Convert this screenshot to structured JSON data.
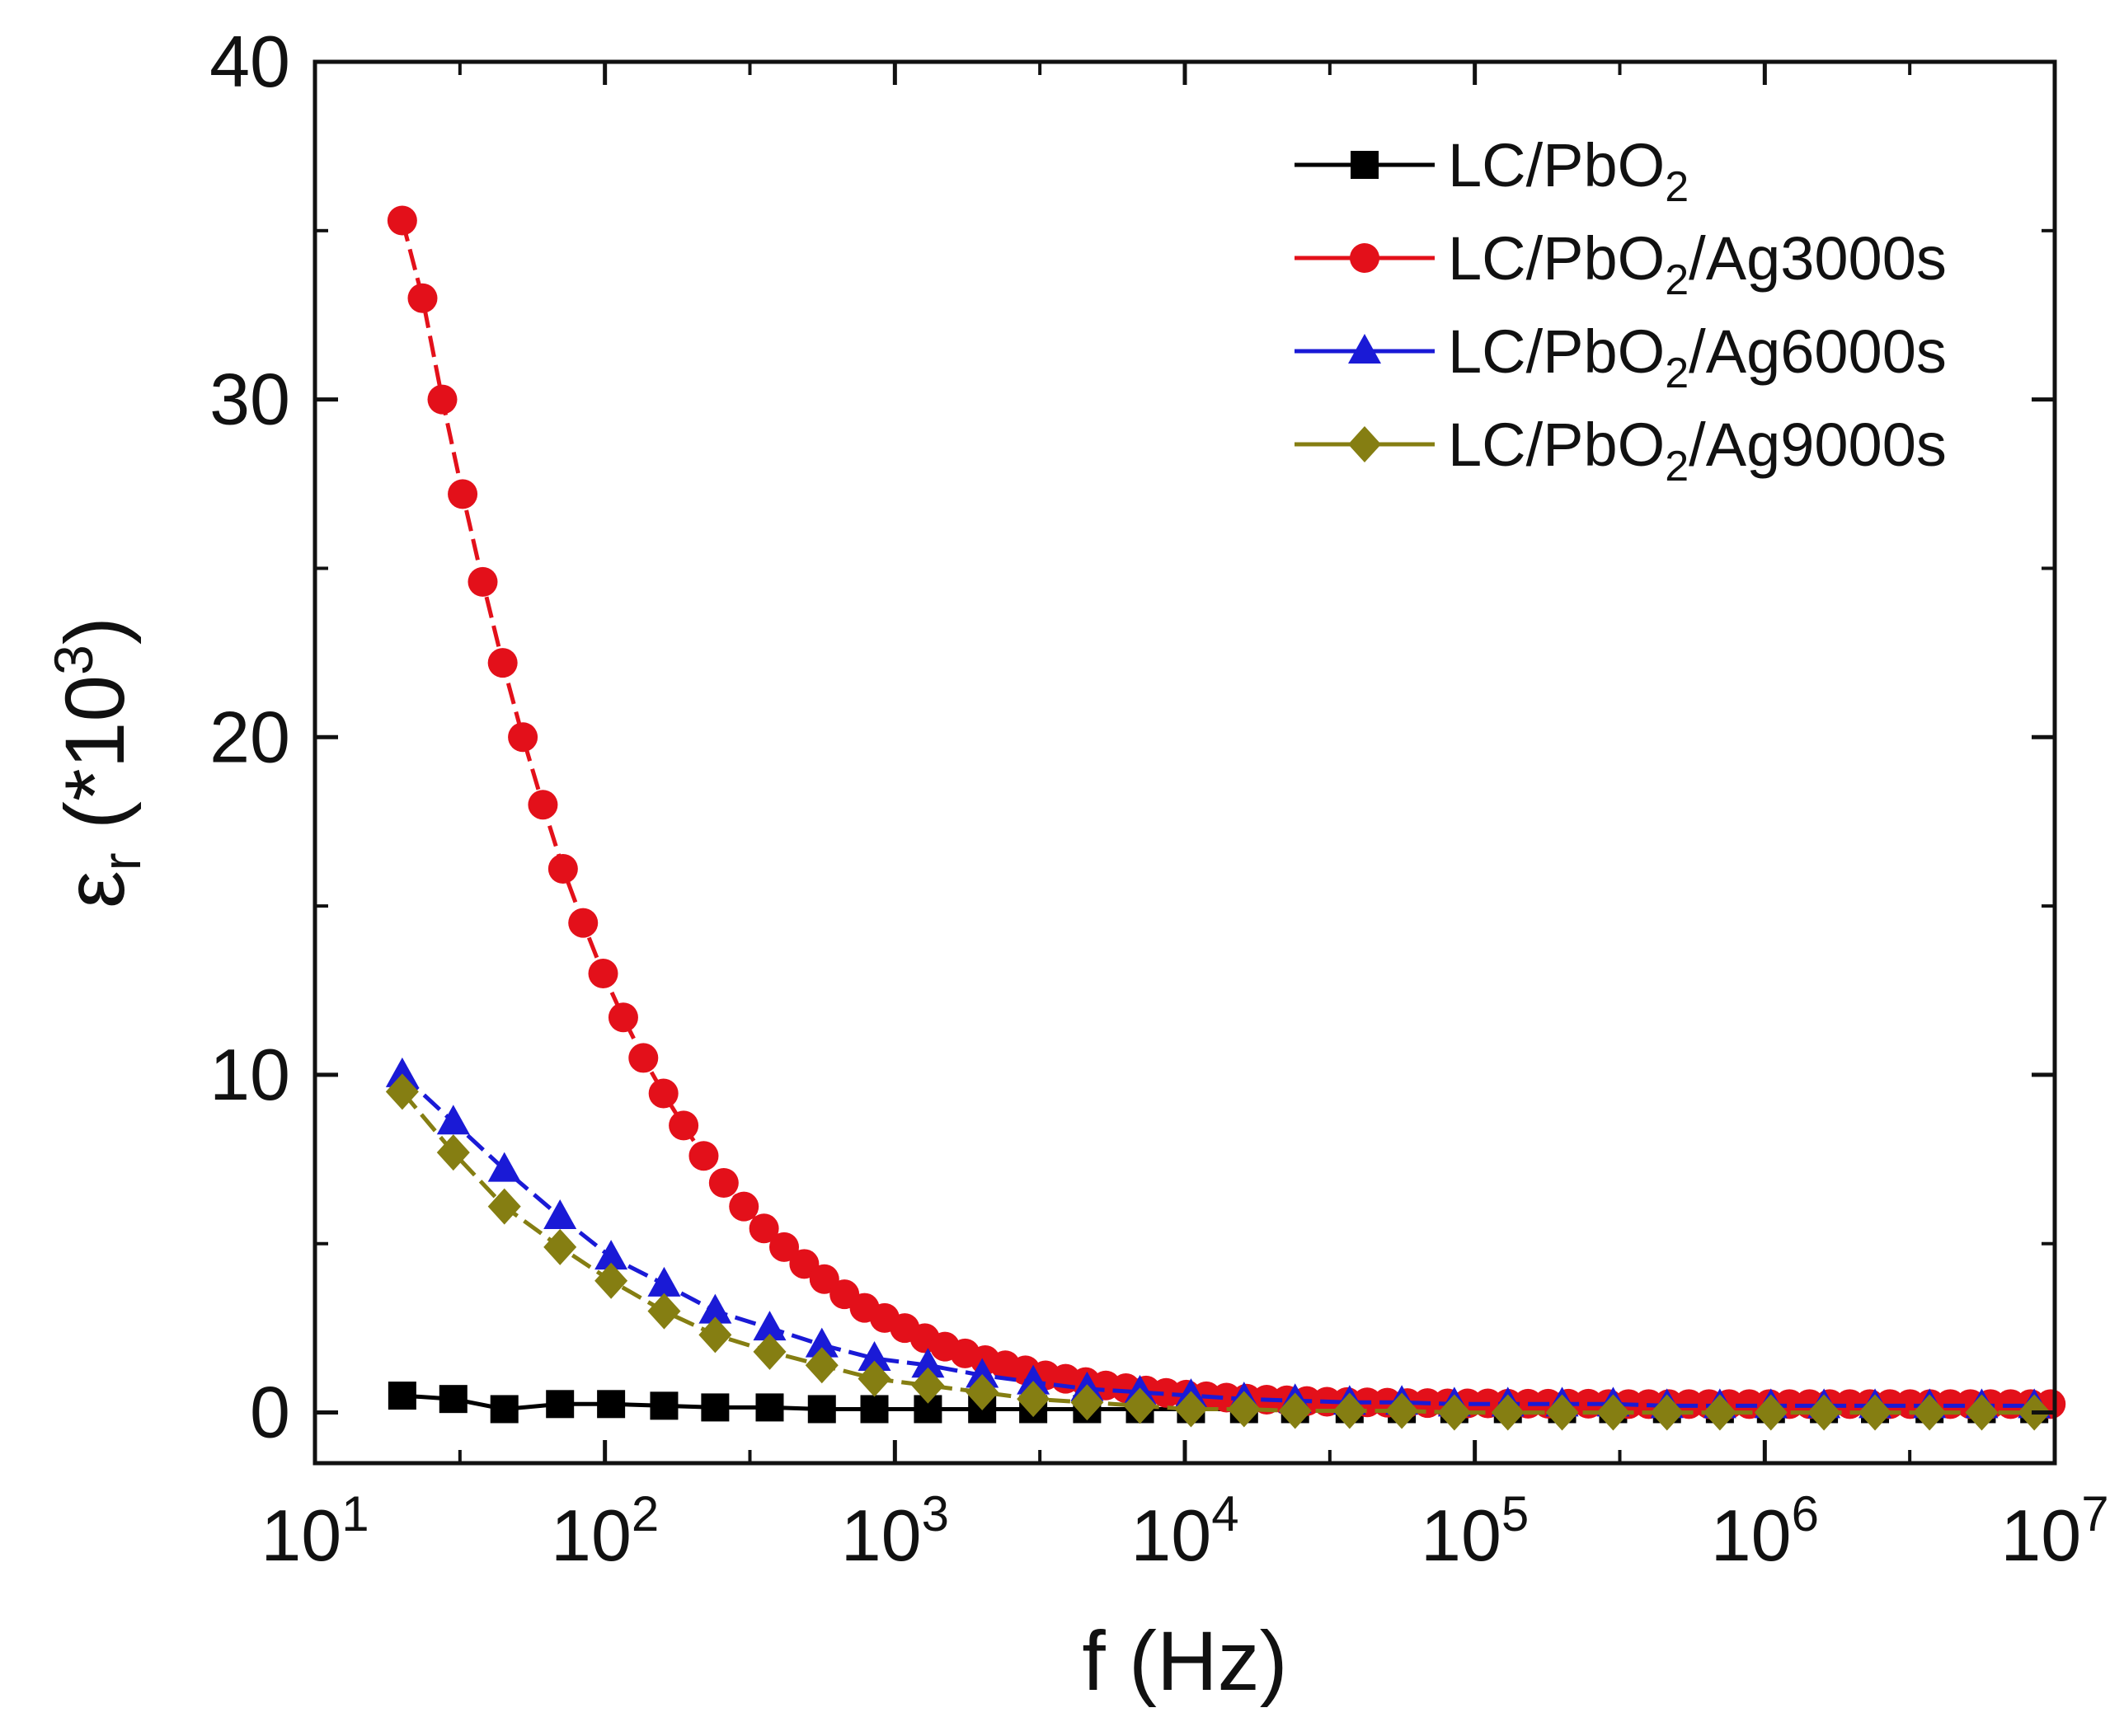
{
  "chart_data": {
    "type": "line",
    "title": "",
    "xlabel": "f (Hz)",
    "ylabel_symbol": "ε",
    "ylabel_sub": "r",
    "ylabel_prefix": " (*10",
    "ylabel_exp": "3",
    "ylabel_suffix": ")",
    "x_scale": "log",
    "xlim": [
      10,
      10000000
    ],
    "ylim": [
      -1.5,
      40
    ],
    "x_tick_labels": [
      {
        "base": "10",
        "exp": "1"
      },
      {
        "base": "10",
        "exp": "2"
      },
      {
        "base": "10",
        "exp": "3"
      },
      {
        "base": "10",
        "exp": "4"
      },
      {
        "base": "10",
        "exp": "5"
      },
      {
        "base": "10",
        "exp": "6"
      },
      {
        "base": "10",
        "exp": "7"
      }
    ],
    "y_ticks": [
      0,
      10,
      20,
      30,
      40
    ],
    "y_tick_labels": [
      "0",
      "10",
      "20",
      "30",
      "40"
    ],
    "legend_position": "top-right",
    "series": [
      {
        "name": "LC/PbO2",
        "label_main": "LC/PbO",
        "label_sub": "2",
        "label_rest": "",
        "color": "#000000",
        "marker": "square",
        "x": [
          20,
          30,
          45,
          70,
          105,
          160,
          240,
          370,
          560,
          850,
          1300,
          2000,
          3000,
          4600,
          7000,
          10500,
          16000,
          24000,
          37000,
          56000,
          85000,
          130000,
          200000,
          300000,
          460000,
          700000,
          1050000,
          1600000,
          2400000,
          3700000,
          5600000,
          8500000
        ],
        "y": [
          0.5,
          0.4,
          0.1,
          0.25,
          0.25,
          0.2,
          0.15,
          0.15,
          0.1,
          0.1,
          0.1,
          0.1,
          0.1,
          0.1,
          0.1,
          0.1,
          0.1,
          0.1,
          0.1,
          0.1,
          0.1,
          0.1,
          0.1,
          0.1,
          0.1,
          0.1,
          0.1,
          0.1,
          0.1,
          0.1,
          0.1,
          0.1
        ]
      },
      {
        "name": "LC/PbO2/Ag3000s",
        "label_main": "LC/PbO",
        "label_sub": "2",
        "label_rest": "/Ag3000s",
        "color": "#e3101a",
        "marker": "circle",
        "x": [
          20,
          23.5,
          27.5,
          32.3,
          37.9,
          44.4,
          52.1,
          61.1,
          71.7,
          84.1,
          98.6,
          115.7,
          135.7,
          159.2,
          186.8,
          219.1,
          257,
          301.5,
          353.7,
          415,
          486.8,
          571.1,
          670,
          785.9,
          922,
          1081.6,
          1268.8,
          1488.5,
          1746.2,
          2048.5,
          2403.1,
          2819.1,
          3307.1,
          3879.6,
          4551.2,
          5339.1,
          6263.4,
          7347.6,
          8619.5,
          10111.7,
          11862.1,
          13915.6,
          16324.6,
          19150.6,
          22465.7,
          26354.9,
          30917.2,
          36269.4,
          42548.2,
          49914,
          58554.7,
          68691.3,
          80582.6,
          94532.3,
          110897,
          130095,
          152616,
          179036,
          210029,
          246387,
          289040,
          339076,
          397774,
          466633,
          547413,
          642178,
          753348,
          883762,
          1036750,
          1216230,
          1426770,
          1673770,
          1963520,
          2303430,
          2702180,
          3169960,
          3718720,
          4362480,
          5117690,
          6003640,
          7042940,
          8262150,
          9692430
        ],
        "y": [
          35.3,
          33.0,
          30.0,
          27.2,
          24.6,
          22.2,
          20.0,
          18.0,
          16.1,
          14.5,
          13.0,
          11.7,
          10.5,
          9.45,
          8.5,
          7.6,
          6.8,
          6.1,
          5.45,
          4.9,
          4.4,
          3.95,
          3.5,
          3.1,
          2.8,
          2.5,
          2.2,
          1.95,
          1.75,
          1.55,
          1.4,
          1.25,
          1.1,
          1.0,
          0.9,
          0.8,
          0.72,
          0.65,
          0.58,
          0.53,
          0.48,
          0.44,
          0.41,
          0.38,
          0.36,
          0.34,
          0.32,
          0.31,
          0.3,
          0.29,
          0.28,
          0.28,
          0.27,
          0.27,
          0.27,
          0.26,
          0.26,
          0.26,
          0.26,
          0.26,
          0.25,
          0.25,
          0.25,
          0.25,
          0.25,
          0.25,
          0.25,
          0.25,
          0.25,
          0.25,
          0.25,
          0.25,
          0.25,
          0.25,
          0.25,
          0.25,
          0.25,
          0.25,
          0.25,
          0.25,
          0.25,
          0.25,
          0.25
        ]
      },
      {
        "name": "LC/PbO2/Ag6000s",
        "label_main": "LC/PbO",
        "label_sub": "2",
        "label_rest": "/Ag6000s",
        "color": "#1a1ad6",
        "marker": "triangle",
        "x": [
          20,
          30,
          45,
          70,
          105,
          160,
          240,
          370,
          560,
          850,
          1300,
          2000,
          3000,
          4600,
          7000,
          10500,
          16000,
          24000,
          37000,
          56000,
          85000,
          130000,
          200000,
          300000,
          460000,
          700000,
          1050000,
          1600000,
          2400000,
          3700000,
          5600000,
          8500000
        ],
        "y": [
          10.0,
          8.6,
          7.2,
          5.8,
          4.6,
          3.8,
          3.0,
          2.5,
          2.0,
          1.6,
          1.4,
          1.1,
          0.9,
          0.7,
          0.6,
          0.5,
          0.4,
          0.35,
          0.3,
          0.3,
          0.25,
          0.25,
          0.25,
          0.25,
          0.2,
          0.2,
          0.2,
          0.2,
          0.2,
          0.2,
          0.2,
          0.2
        ]
      },
      {
        "name": "LC/PbO2/Ag9000s",
        "label_main": "LC/PbO",
        "label_sub": "2",
        "label_rest": "/Ag9000s",
        "color": "#857e12",
        "marker": "diamond",
        "x": [
          20,
          30,
          45,
          70,
          105,
          160,
          240,
          370,
          560,
          850,
          1300,
          2000,
          3000,
          4600,
          7000,
          10500,
          16000,
          24000,
          37000,
          56000,
          85000,
          130000,
          200000,
          300000,
          460000,
          700000,
          1050000,
          1600000,
          2400000,
          3700000,
          5600000,
          8500000
        ],
        "y": [
          9.5,
          7.7,
          6.1,
          4.9,
          3.9,
          3.0,
          2.3,
          1.8,
          1.4,
          1.0,
          0.8,
          0.6,
          0.4,
          0.3,
          0.2,
          0.1,
          0.1,
          0.05,
          0.05,
          0.05,
          0.0,
          0.0,
          0.0,
          0.0,
          0.0,
          0.0,
          0.0,
          0.0,
          0.0,
          0.0,
          0.0,
          0.0
        ]
      }
    ]
  }
}
